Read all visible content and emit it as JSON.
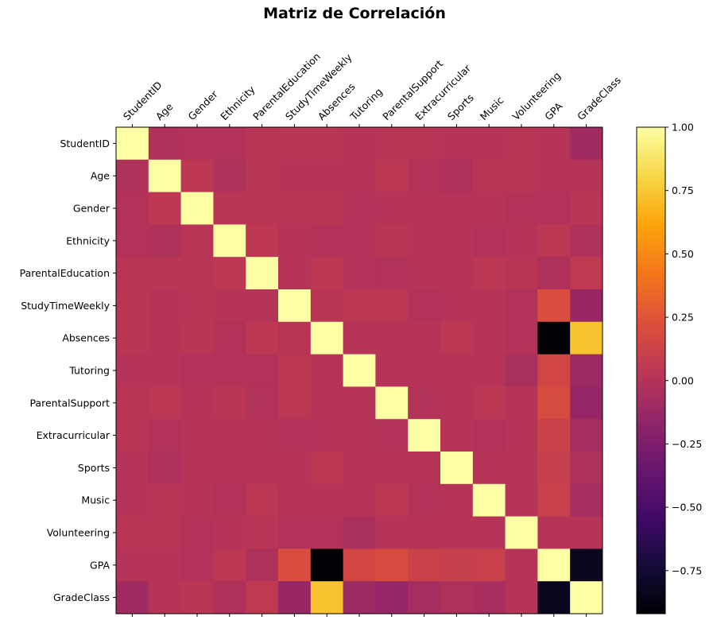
{
  "chart_data": {
    "type": "heatmap",
    "title": "Matriz de Correlación",
    "labels": [
      "StudentID",
      "Age",
      "Gender",
      "Ethnicity",
      "ParentalEducation",
      "StudyTimeWeekly",
      "Absences",
      "Tutoring",
      "ParentalSupport",
      "Extracurricular",
      "Sports",
      "Music",
      "Volunteering",
      "GPA",
      "GradeClass"
    ],
    "colormap": "inferno",
    "vmin": -0.92,
    "vmax": 1.0,
    "colorbar_ticks": [
      "1.00",
      "0.75",
      "0.50",
      "0.25",
      "0.00",
      "−0.25",
      "−0.50",
      "−0.75"
    ],
    "colorbar_tick_values": [
      1.0,
      0.75,
      0.5,
      0.25,
      0.0,
      -0.25,
      -0.5,
      -0.75
    ],
    "matrix": [
      [
        1.0,
        -0.02,
        0.0,
        0.0,
        0.02,
        0.03,
        0.03,
        0.01,
        0.02,
        0.02,
        0.01,
        0.01,
        0.02,
        0.01,
        -0.09
      ],
      [
        -0.02,
        1.0,
        0.05,
        -0.02,
        0.03,
        0.01,
        0.01,
        0.01,
        0.04,
        0.0,
        -0.03,
        0.02,
        0.02,
        0.01,
        0.01
      ],
      [
        0.0,
        0.05,
        1.0,
        0.02,
        0.02,
        0.02,
        0.03,
        -0.01,
        0.01,
        0.01,
        0.01,
        0.01,
        0.0,
        -0.01,
        0.03
      ],
      [
        0.0,
        -0.02,
        0.02,
        1.0,
        0.05,
        0.01,
        0.0,
        0.0,
        0.03,
        0.01,
        0.01,
        -0.01,
        0.01,
        0.04,
        -0.02
      ],
      [
        0.02,
        0.03,
        0.02,
        0.05,
        1.0,
        0.01,
        0.05,
        -0.01,
        -0.01,
        0.01,
        0.01,
        0.04,
        0.02,
        -0.03,
        0.06
      ],
      [
        0.03,
        0.01,
        0.02,
        0.01,
        0.01,
        1.0,
        0.02,
        0.04,
        0.04,
        -0.01,
        0.01,
        0.01,
        -0.01,
        0.2,
        -0.13
      ],
      [
        0.03,
        0.01,
        0.03,
        0.0,
        0.05,
        0.02,
        1.0,
        0.01,
        0.01,
        0.01,
        0.04,
        0.01,
        0.0,
        -0.92,
        0.73
      ],
      [
        0.01,
        0.01,
        -0.01,
        0.0,
        -0.01,
        0.04,
        0.01,
        1.0,
        0.01,
        0.01,
        0.01,
        0.01,
        -0.05,
        0.15,
        -0.11
      ],
      [
        0.02,
        0.04,
        0.01,
        0.03,
        -0.01,
        0.04,
        0.01,
        0.01,
        1.0,
        0.0,
        0.01,
        0.04,
        0.01,
        0.19,
        -0.14
      ],
      [
        0.02,
        0.0,
        0.01,
        0.01,
        0.01,
        -0.01,
        0.01,
        0.01,
        0.0,
        1.0,
        0.01,
        0.0,
        0.01,
        0.12,
        -0.07
      ],
      [
        0.01,
        -0.03,
        0.01,
        0.01,
        0.01,
        0.01,
        0.04,
        0.01,
        0.01,
        0.01,
        1.0,
        0.01,
        0.01,
        0.1,
        -0.03
      ],
      [
        0.01,
        0.02,
        0.01,
        -0.01,
        0.04,
        0.01,
        0.01,
        0.01,
        0.04,
        0.0,
        0.01,
        1.0,
        0.01,
        0.11,
        -0.06
      ],
      [
        0.02,
        0.02,
        0.0,
        0.01,
        0.02,
        -0.01,
        0.0,
        -0.05,
        0.01,
        0.01,
        0.01,
        0.01,
        1.0,
        0.01,
        0.01
      ],
      [
        0.01,
        0.01,
        -0.01,
        0.04,
        -0.03,
        0.2,
        -0.92,
        0.15,
        0.19,
        0.12,
        0.1,
        0.11,
        0.01,
        1.0,
        -0.82
      ],
      [
        -0.09,
        0.01,
        0.03,
        -0.02,
        0.06,
        -0.13,
        0.73,
        -0.11,
        -0.14,
        -0.07,
        -0.03,
        -0.06,
        0.01,
        -0.82,
        1.0
      ]
    ]
  }
}
